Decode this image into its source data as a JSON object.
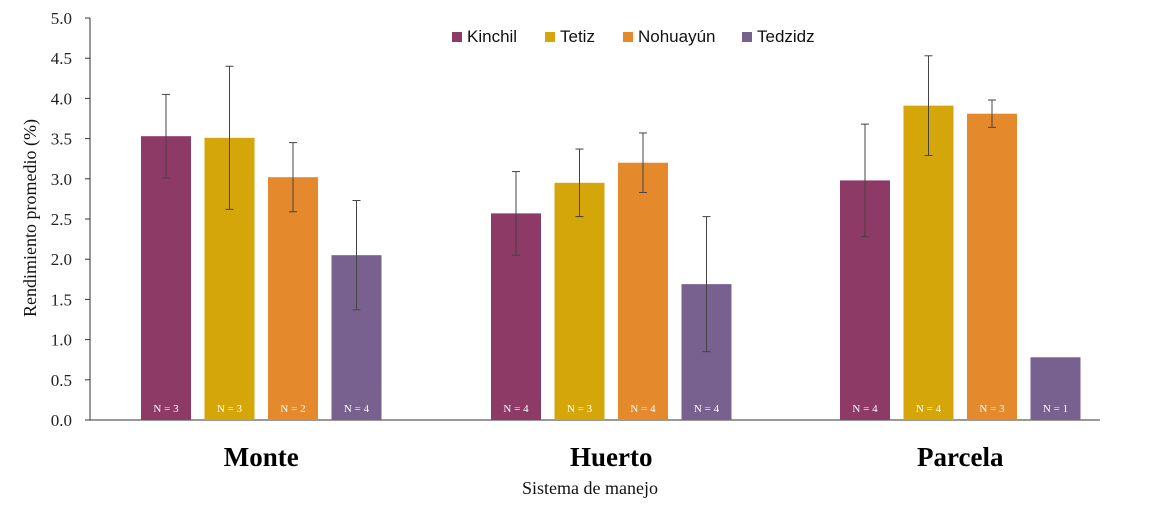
{
  "chart_data": {
    "type": "bar",
    "title": "",
    "xlabel": "Sistema de manejo",
    "ylabel": "Rendimiento promedio (%)",
    "ylim": [
      0,
      5
    ],
    "ytick_step": 0.5,
    "yticks": [
      "0.0",
      "0.5",
      "1.0",
      "1.5",
      "2.0",
      "2.5",
      "3.0",
      "3.5",
      "4.0",
      "4.5",
      "5.0"
    ],
    "categories": [
      "Monte",
      "Huerto",
      "Parcela"
    ],
    "legend_position": "top-center",
    "series": [
      {
        "name": "Kinchil",
        "color": "#8e3a66",
        "values": [
          3.53,
          2.57,
          2.98
        ],
        "errors": [
          0.52,
          0.52,
          0.7
        ],
        "n_labels": [
          "N = 3",
          "N = 4",
          "N = 4"
        ]
      },
      {
        "name": "Tetiz",
        "color": "#d4a60a",
        "values": [
          3.51,
          2.95,
          3.91
        ],
        "errors": [
          0.89,
          0.42,
          0.62
        ],
        "n_labels": [
          "N = 3",
          "N = 3",
          "N = 4"
        ]
      },
      {
        "name": "Nohuayún",
        "color": "#e58a2c",
        "values": [
          3.02,
          3.2,
          3.81
        ],
        "errors": [
          0.43,
          0.37,
          0.17
        ],
        "n_labels": [
          "N = 2",
          "N = 4",
          "N = 3"
        ]
      },
      {
        "name": "Tedzidz",
        "color": "#78618f",
        "values": [
          2.05,
          1.69,
          0.78
        ],
        "errors": [
          0.68,
          0.84,
          0.0
        ],
        "n_labels": [
          "N = 4",
          "N = 4",
          "N = 1"
        ]
      }
    ]
  }
}
